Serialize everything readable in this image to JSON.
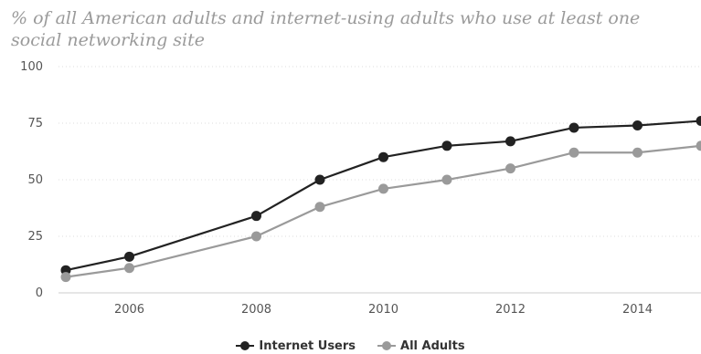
{
  "chart_data": {
    "type": "line",
    "title": "% of all American adults and internet-using adults who use at least one social networking site",
    "xlabel": "",
    "ylabel": "",
    "x": [
      2005,
      2006,
      2008,
      2009,
      2010,
      2011,
      2012,
      2013,
      2014,
      2015
    ],
    "x_ticks": [
      "2006",
      "2008",
      "2010",
      "2012",
      "2014"
    ],
    "y_ticks": [
      "0",
      "25",
      "50",
      "75",
      "100"
    ],
    "xlim": [
      2005,
      2015
    ],
    "ylim": [
      0,
      100
    ],
    "grid": true,
    "legend_placement": "bottom-center",
    "series": [
      {
        "name": "Internet Users",
        "color": "#222222",
        "values": [
          10,
          16,
          34,
          50,
          60,
          65,
          67,
          73,
          74,
          76
        ]
      },
      {
        "name": "All Adults",
        "color": "#9a9a9a",
        "values": [
          7,
          11,
          25,
          38,
          46,
          50,
          55,
          62,
          62,
          65
        ]
      }
    ]
  }
}
